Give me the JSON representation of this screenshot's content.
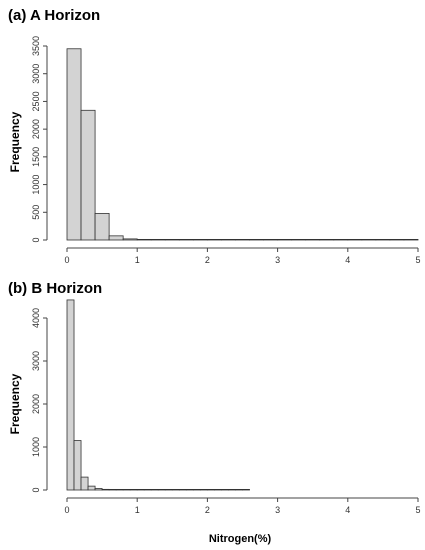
{
  "chart_data": [
    {
      "type": "bar",
      "title": "(a) A Horizon",
      "ylabel": "Frequency",
      "xlabel": "",
      "xlim": [
        0,
        5
      ],
      "ylim": [
        0,
        3500
      ],
      "x_ticks": [
        "0",
        "1",
        "2",
        "3",
        "4",
        "5"
      ],
      "y_ticks": [
        "0",
        "500",
        "1000",
        "1500",
        "2000",
        "2500",
        "3000",
        "3500"
      ],
      "bin_width": 0.2,
      "bin_edges": [
        0.0,
        0.2,
        0.4,
        0.6,
        0.8,
        1.0,
        1.2,
        1.4,
        1.6,
        1.8,
        2.0,
        2.2,
        2.4,
        2.6,
        2.8,
        3.0,
        3.2,
        3.4,
        3.6,
        3.8,
        4.0,
        4.2,
        4.4,
        4.6,
        4.8,
        5.0
      ],
      "values": [
        3450,
        2340,
        480,
        75,
        20,
        4,
        2,
        1,
        1,
        0,
        0,
        0,
        0,
        0,
        0,
        0,
        0,
        0,
        0,
        0,
        0,
        0,
        0,
        0,
        1
      ]
    },
    {
      "type": "bar",
      "title": "(b) B Horizon",
      "ylabel": "Frequency",
      "xlabel": "Nitrogen(%)",
      "xlim": [
        0,
        5
      ],
      "ylim": [
        0,
        4000
      ],
      "x_ticks": [
        "0",
        "1",
        "2",
        "3",
        "4",
        "5"
      ],
      "y_ticks": [
        "0",
        "1000",
        "2000",
        "3000",
        "4000"
      ],
      "bin_width": 0.1,
      "bin_edges": [
        0.0,
        0.1,
        0.2,
        0.3,
        0.4,
        0.5,
        0.6,
        0.7,
        0.8,
        0.9,
        1.0,
        1.1,
        1.2,
        1.3,
        1.4,
        1.5,
        1.6,
        1.7,
        1.8,
        1.9,
        2.0,
        2.1,
        2.2,
        2.3,
        2.4,
        2.5,
        2.6
      ],
      "values": [
        4420,
        1150,
        300,
        90,
        35,
        15,
        8,
        4,
        2,
        1,
        1,
        1,
        0,
        0,
        0,
        0,
        0,
        0,
        0,
        0,
        0,
        0,
        0,
        0,
        0,
        1
      ]
    }
  ]
}
